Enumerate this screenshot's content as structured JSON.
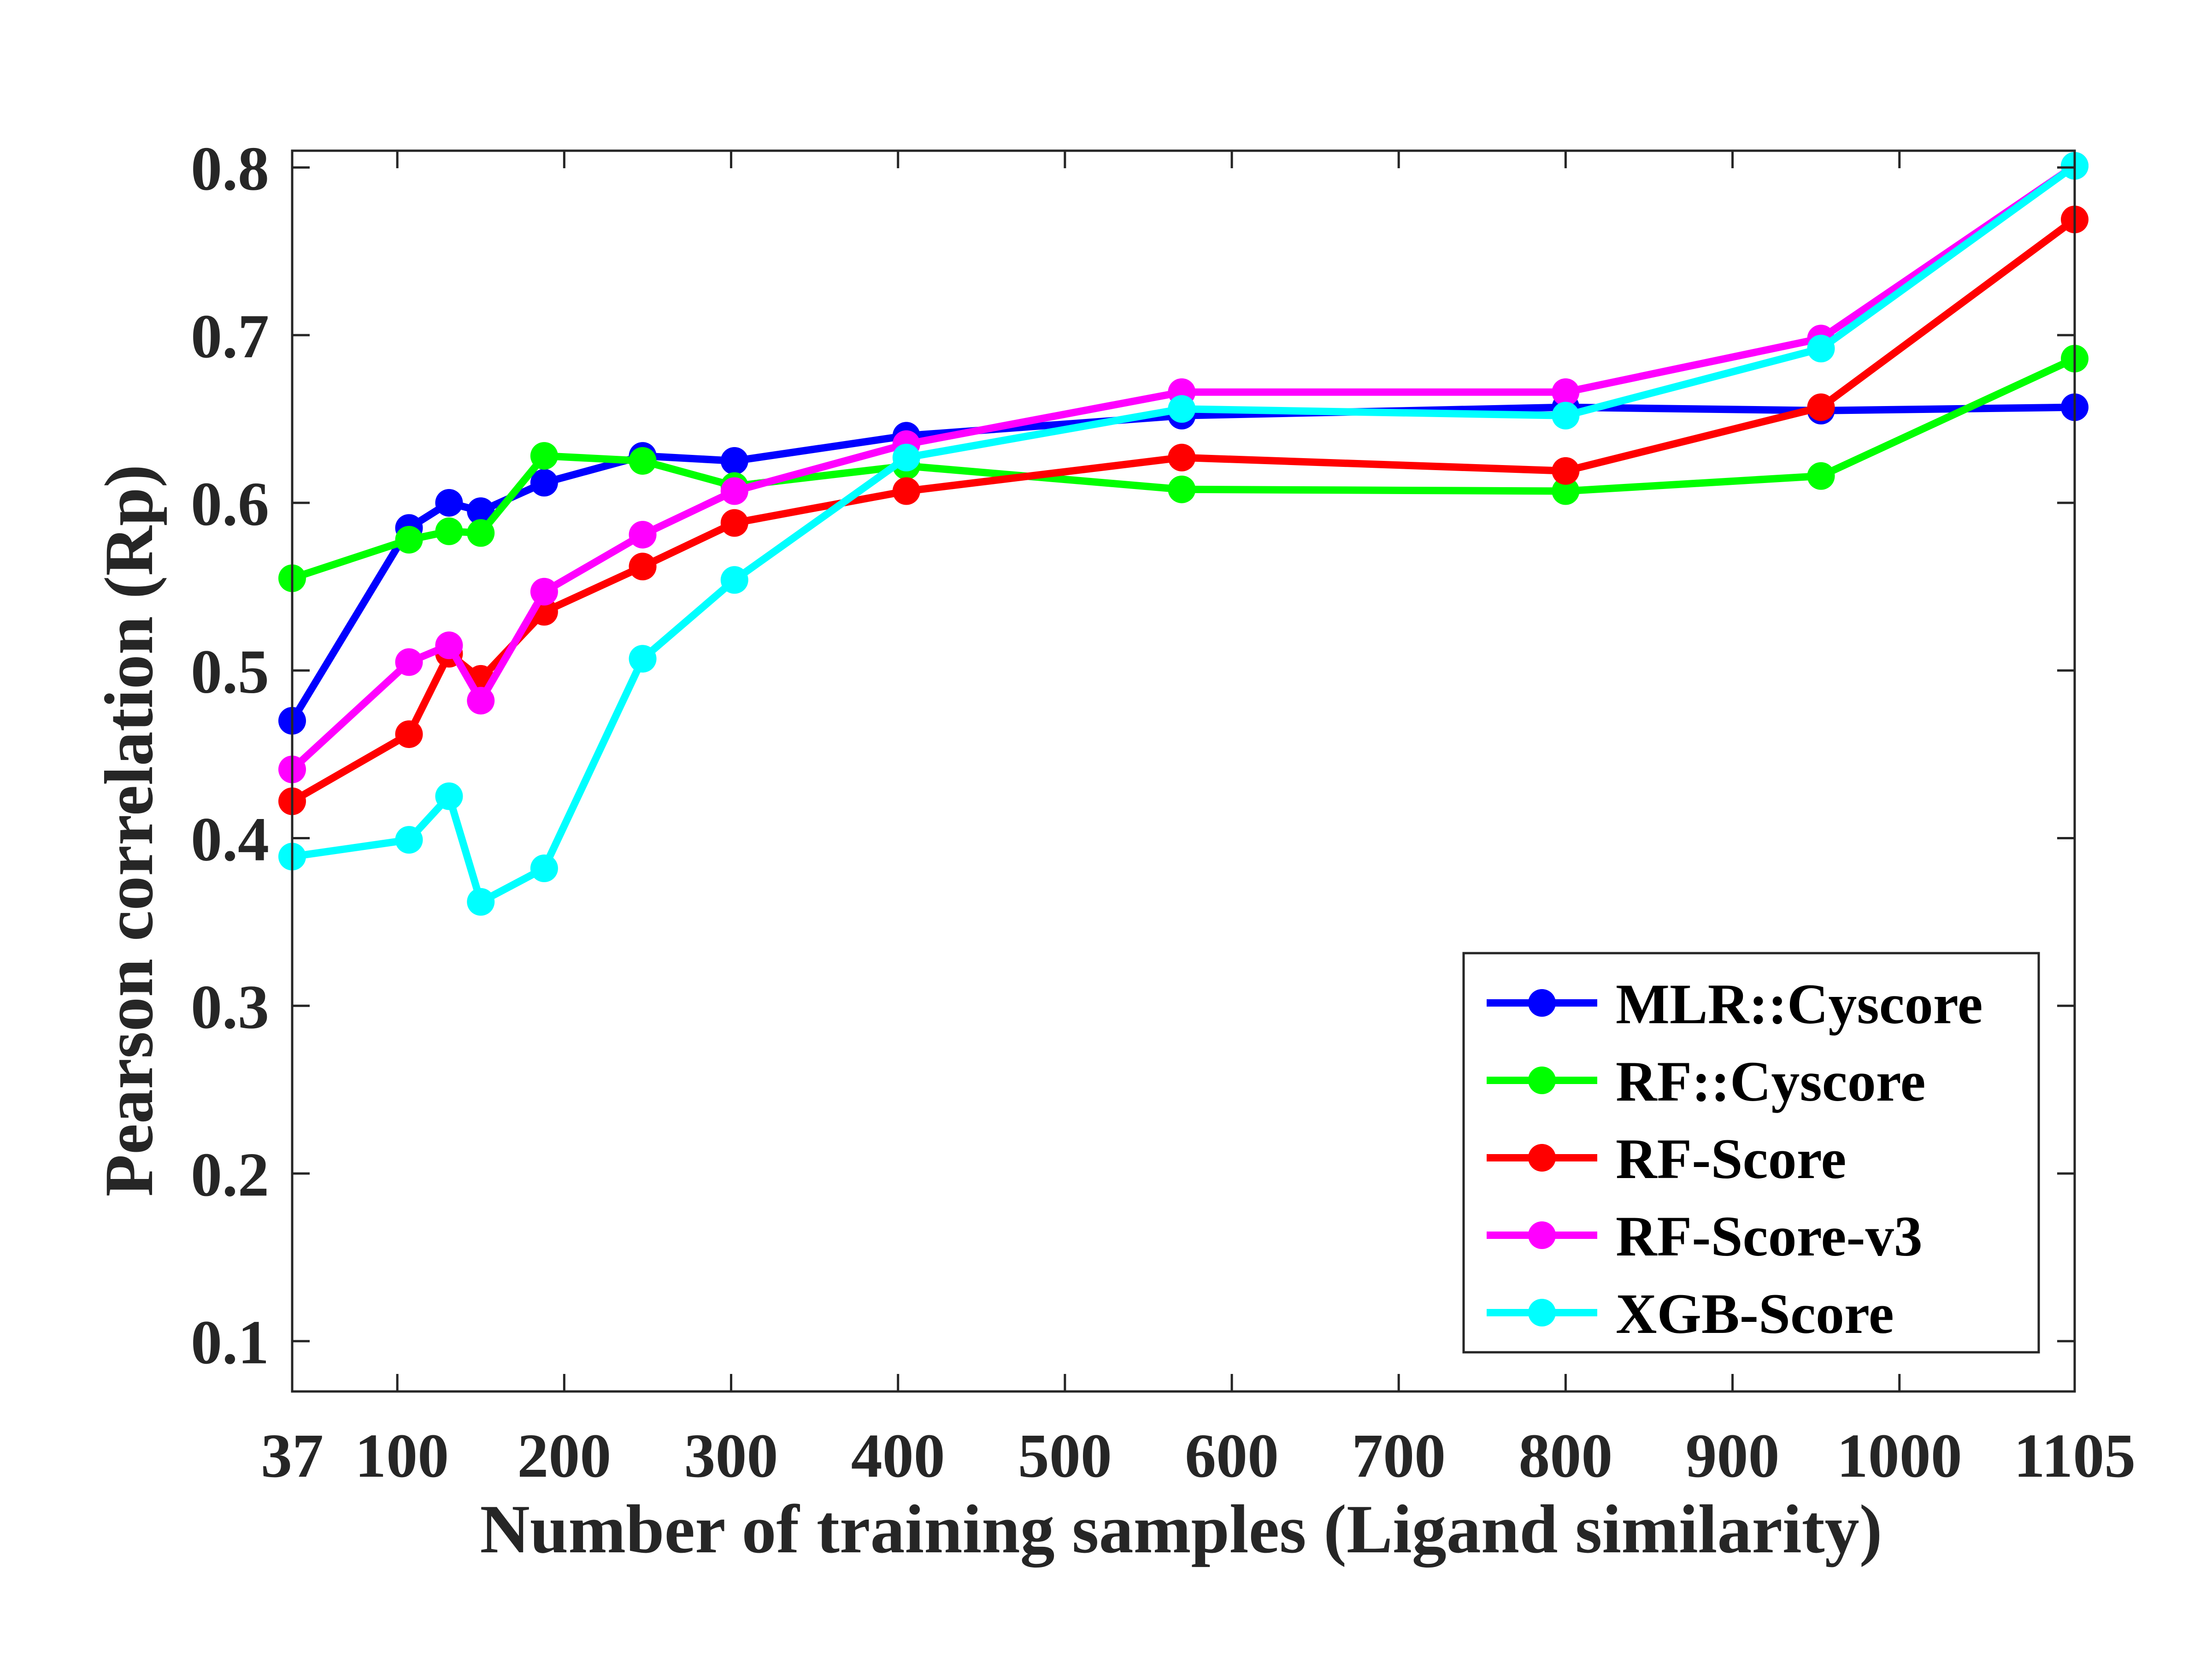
{
  "chart_data": {
    "type": "line",
    "title": "",
    "xlabel": "Number of training samples (Ligand similarity)",
    "ylabel": "Pearson correlation (Rp)",
    "xlim": [
      37,
      1105
    ],
    "ylim": [
      0.07,
      0.81
    ],
    "xticks": [
      37,
      100,
      200,
      300,
      400,
      500,
      600,
      700,
      800,
      900,
      1000,
      1105
    ],
    "xtick_labels": [
      "37",
      "100",
      "200",
      "300",
      "400",
      "500",
      "600",
      "700",
      "800",
      "900",
      "1000",
      "1105"
    ],
    "yticks": [
      0.1,
      0.2,
      0.3,
      0.4,
      0.5,
      0.6,
      0.7,
      0.8
    ],
    "ytick_labels": [
      "0.1",
      "0.2",
      "0.3",
      "0.4",
      "0.5",
      "0.6",
      "0.7",
      "0.8"
    ],
    "grid": false,
    "legend_position": "bottom-right",
    "x": [
      37,
      107,
      131,
      150,
      188,
      247,
      302,
      405,
      570,
      800,
      953,
      1105
    ],
    "series": [
      {
        "name": "MLR::Cyscore",
        "color": "#0000ff",
        "values": [
          0.47,
          0.585,
          0.6,
          0.595,
          0.612,
          0.628,
          0.625,
          0.64,
          0.652,
          0.657,
          0.655,
          0.657
        ]
      },
      {
        "name": "RF::Cyscore",
        "color": "#00ff00",
        "values": [
          0.555,
          0.578,
          0.583,
          0.582,
          0.628,
          0.625,
          0.61,
          0.622,
          0.608,
          0.607,
          0.616,
          0.686
        ]
      },
      {
        "name": "RF-Score",
        "color": "#ff0000",
        "values": [
          0.422,
          0.462,
          0.51,
          0.495,
          0.535,
          0.562,
          0.588,
          0.607,
          0.627,
          0.619,
          0.657,
          0.769
        ]
      },
      {
        "name": "RF-Score-v3",
        "color": "#ff00ff",
        "values": [
          0.441,
          0.505,
          0.515,
          0.482,
          0.547,
          0.581,
          0.607,
          0.635,
          0.666,
          0.666,
          0.698,
          0.801
        ]
      },
      {
        "name": "XGB-Score",
        "color": "#00ffff",
        "values": [
          0.389,
          0.399,
          0.425,
          0.362,
          0.382,
          0.507,
          0.554,
          0.627,
          0.656,
          0.652,
          0.692,
          0.801
        ]
      }
    ]
  }
}
